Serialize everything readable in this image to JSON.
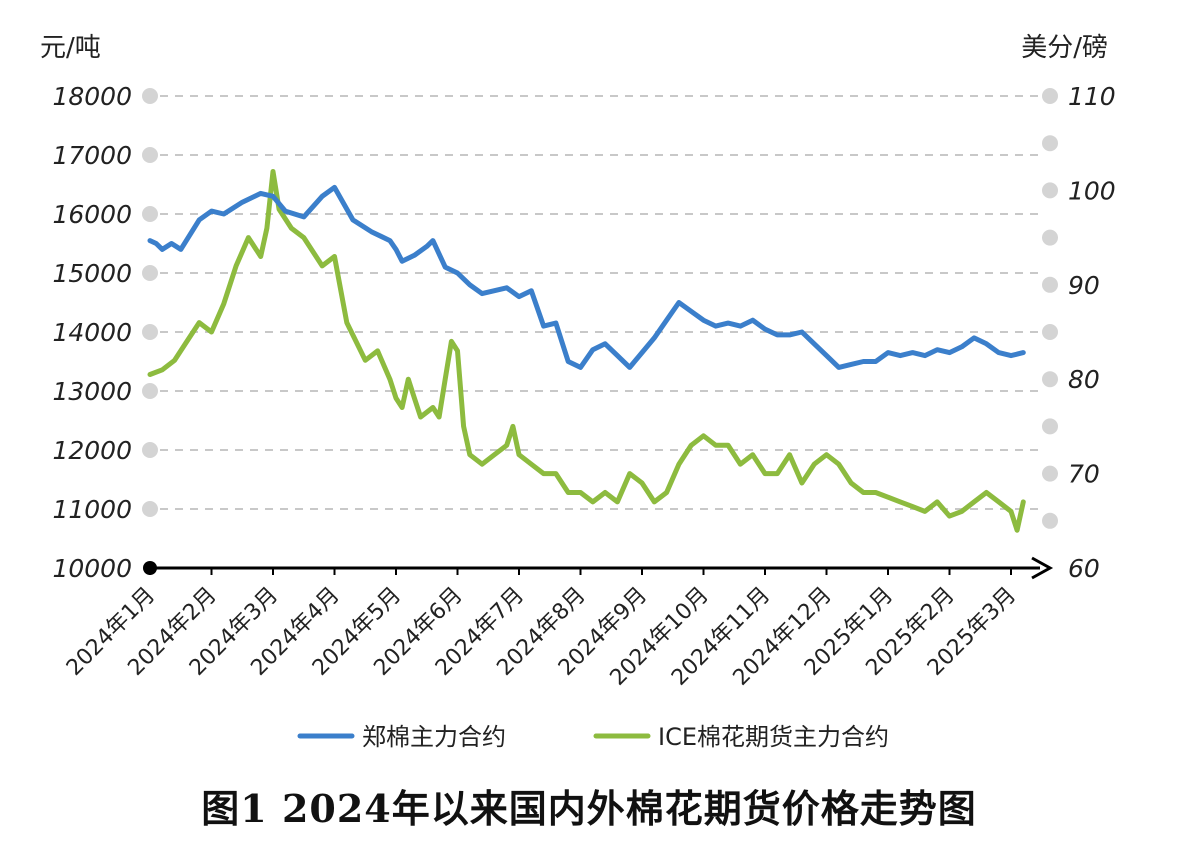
{
  "caption": "图1  2024年以来国内外棉花期货价格走势图",
  "chart_data": {
    "type": "line",
    "title": "图1  2024年以来国内外棉花期货价格走势图",
    "ylabel_left": "元/吨",
    "ylabel_right": "美分/磅",
    "ylim_left": [
      10000,
      18000
    ],
    "ylim_right": [
      60,
      110
    ],
    "yticks_left": [
      "18000",
      "17000",
      "16000",
      "15000",
      "14000",
      "13000",
      "12000",
      "11000",
      "10000"
    ],
    "yticks_right": [
      "110",
      "100",
      "90",
      "80",
      "70",
      "60"
    ],
    "grid": true,
    "legend_position": "bottom",
    "x_labels": [
      "2024年1月",
      "2024年2月",
      "2024年3月",
      "2024年4月",
      "2024年5月",
      "2024年6月",
      "2024年7月",
      "2024年8月",
      "2024年9月",
      "2024年10月",
      "2024年11月",
      "2024年12月",
      "2025年1月",
      "2025年2月",
      "2025年3月"
    ],
    "series": [
      {
        "name": "郑棉主力合约",
        "axis": "left",
        "color": "#3b7fcb",
        "x": [
          0,
          0.1,
          0.2,
          0.35,
          0.5,
          0.8,
          1.0,
          1.2,
          1.5,
          1.8,
          2.0,
          2.2,
          2.5,
          2.8,
          3.0,
          3.3,
          3.6,
          3.9,
          4.0,
          4.1,
          4.3,
          4.5,
          4.6,
          4.8,
          5.0,
          5.2,
          5.4,
          5.6,
          5.8,
          6.0,
          6.2,
          6.4,
          6.6,
          6.8,
          7.0,
          7.2,
          7.4,
          7.6,
          7.8,
          8.0,
          8.2,
          8.4,
          8.6,
          8.8,
          9.0,
          9.2,
          9.4,
          9.6,
          9.8,
          10.0,
          10.2,
          10.4,
          10.6,
          10.8,
          11.0,
          11.2,
          11.4,
          11.6,
          11.8,
          12.0,
          12.2,
          12.4,
          12.6,
          12.8,
          13.0,
          13.2,
          13.4,
          13.6,
          13.8,
          14.0,
          14.2
        ],
        "values": [
          15550,
          15500,
          15400,
          15500,
          15400,
          15900,
          16050,
          16000,
          16200,
          16350,
          16300,
          16050,
          15950,
          16300,
          16450,
          15900,
          15700,
          15550,
          15400,
          15200,
          15300,
          15450,
          15550,
          15100,
          15000,
          14800,
          14650,
          14700,
          14750,
          14600,
          14700,
          14100,
          14150,
          13500,
          13400,
          13700,
          13800,
          13600,
          13400,
          13650,
          13900,
          14200,
          14500,
          14350,
          14200,
          14100,
          14150,
          14100,
          14200,
          14050,
          13950,
          13950,
          14000,
          13800,
          13600,
          13400,
          13450,
          13500,
          13500,
          13650,
          13600,
          13650,
          13600,
          13700,
          13650,
          13750,
          13900,
          13800,
          13650,
          13600,
          13650
        ]
      },
      {
        "name": "ICE棉花期货主力合约",
        "axis": "right",
        "color": "#8dbb3f",
        "x": [
          0,
          0.2,
          0.4,
          0.6,
          0.8,
          1.0,
          1.2,
          1.4,
          1.6,
          1.8,
          1.9,
          2.0,
          2.1,
          2.3,
          2.5,
          2.8,
          3.0,
          3.2,
          3.5,
          3.7,
          3.9,
          4.0,
          4.1,
          4.2,
          4.3,
          4.4,
          4.6,
          4.7,
          4.8,
          4.9,
          5.0,
          5.1,
          5.2,
          5.4,
          5.6,
          5.8,
          5.9,
          6.0,
          6.2,
          6.4,
          6.6,
          6.8,
          7.0,
          7.2,
          7.4,
          7.6,
          7.8,
          8.0,
          8.2,
          8.4,
          8.6,
          8.8,
          9.0,
          9.2,
          9.4,
          9.6,
          9.8,
          10.0,
          10.2,
          10.4,
          10.6,
          10.8,
          11.0,
          11.2,
          11.4,
          11.6,
          11.8,
          12.0,
          12.2,
          12.4,
          12.6,
          12.8,
          13.0,
          13.2,
          13.4,
          13.6,
          13.8,
          14.0,
          14.1,
          14.2
        ],
        "values": [
          80.5,
          81,
          82,
          84,
          86,
          85,
          88,
          92,
          95,
          93,
          96,
          102,
          98,
          96,
          95,
          92,
          93,
          86,
          82,
          83,
          80,
          78,
          77,
          80,
          78,
          76,
          77,
          76,
          80,
          84,
          83,
          75,
          72,
          71,
          72,
          73,
          75,
          72,
          71,
          70,
          70,
          68,
          68,
          67,
          68,
          67,
          70,
          69,
          67,
          68,
          71,
          73,
          74,
          73,
          73,
          71,
          72,
          70,
          70,
          72,
          69,
          71,
          72,
          71,
          69,
          68,
          68,
          67.5,
          67,
          66.5,
          66,
          67,
          65.5,
          66,
          67,
          68,
          67,
          66,
          64,
          67
        ]
      }
    ]
  }
}
